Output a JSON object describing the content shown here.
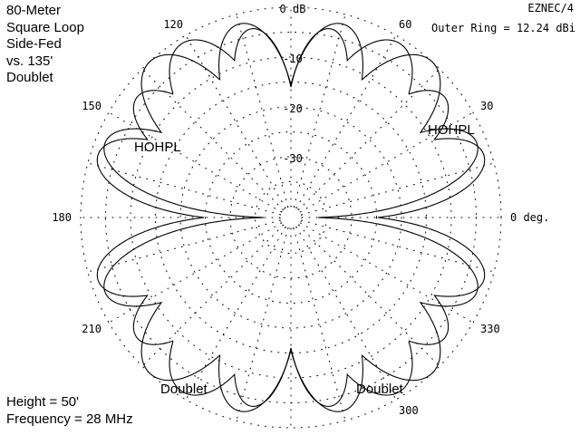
{
  "title_lines": [
    "80-Meter",
    "Square Loop",
    "Side-Fed",
    "vs. 135'",
    "Doublet"
  ],
  "program_label": "EZNEC/4",
  "outer_ring_label": "Outer Ring = 12.24 dBi",
  "bottom_lines": [
    "Height = 50'",
    "Frequency = 28 MHz"
  ],
  "colors": {
    "background": "#ffffff",
    "trace": "#000000",
    "grid": "#000000"
  },
  "chart_data": {
    "type": "polar",
    "title": "80-Meter Square Loop Side-Fed vs. 135' Doublet",
    "outer_ring_dbi": 12.24,
    "angle_unit": "deg",
    "angle_direction": "counterclockwise from right",
    "angle_labels": [
      {
        "angle": 0,
        "text": "0 deg."
      },
      {
        "angle": 30,
        "text": "30"
      },
      {
        "angle": 60,
        "text": "60"
      },
      {
        "angle": 120,
        "text": "120"
      },
      {
        "angle": 150,
        "text": "150"
      },
      {
        "angle": 180,
        "text": "180"
      },
      {
        "angle": 210,
        "text": "210"
      },
      {
        "angle": 300,
        "text": "300"
      },
      {
        "angle": 330,
        "text": "330"
      }
    ],
    "ring_labels": [
      {
        "db": 0,
        "text": "0 dB"
      },
      {
        "db": -10,
        "text": "-10"
      },
      {
        "db": -20,
        "text": "-20"
      },
      {
        "db": -30,
        "text": "-30"
      }
    ],
    "grid": true,
    "series": [
      {
        "name": "HOHPL",
        "annotations": [
          "HOHPL",
          "HOHPL"
        ],
        "lobes": [
          {
            "az": 18,
            "rel_db": -1.5,
            "width": 5.5
          },
          {
            "az": 38,
            "rel_db": -3.0,
            "width": 5.5
          },
          {
            "az": 58,
            "rel_db": -1.0,
            "width": 6.5
          },
          {
            "az": 78,
            "rel_db": -3.5,
            "width": 5.0
          },
          {
            "az": 102,
            "rel_db": -3.5,
            "width": 5.0
          },
          {
            "az": 122,
            "rel_db": -1.0,
            "width": 6.5
          },
          {
            "az": 142,
            "rel_db": -3.0,
            "width": 5.5
          },
          {
            "az": 162,
            "rel_db": -1.5,
            "width": 5.5
          },
          {
            "az": 198,
            "rel_db": -1.5,
            "width": 5.5
          },
          {
            "az": 218,
            "rel_db": -3.0,
            "width": 5.5
          },
          {
            "az": 238,
            "rel_db": -1.0,
            "width": 6.5
          },
          {
            "az": 258,
            "rel_db": -3.5,
            "width": 5.0
          },
          {
            "az": 282,
            "rel_db": -3.5,
            "width": 5.0
          },
          {
            "az": 302,
            "rel_db": -1.0,
            "width": 6.5
          },
          {
            "az": 322,
            "rel_db": -3.0,
            "width": 5.5
          },
          {
            "az": 342,
            "rel_db": -1.5,
            "width": 5.5
          }
        ]
      },
      {
        "name": "Doublet",
        "annotations": [
          "Doublet",
          "Doublet"
        ],
        "lobes": [
          {
            "az": 22,
            "rel_db": -2.0,
            "width": 5.5
          },
          {
            "az": 48,
            "rel_db": 0.0,
            "width": 6.5
          },
          {
            "az": 75,
            "rel_db": -2.0,
            "width": 6.0
          },
          {
            "az": 105,
            "rel_db": -2.0,
            "width": 6.0
          },
          {
            "az": 132,
            "rel_db": 0.0,
            "width": 6.5
          },
          {
            "az": 158,
            "rel_db": -2.0,
            "width": 5.5
          },
          {
            "az": 202,
            "rel_db": -2.0,
            "width": 5.5
          },
          {
            "az": 228,
            "rel_db": 0.0,
            "width": 6.5
          },
          {
            "az": 255,
            "rel_db": -2.0,
            "width": 6.0
          },
          {
            "az": 285,
            "rel_db": -2.0,
            "width": 6.0
          },
          {
            "az": 312,
            "rel_db": 0.0,
            "width": 6.5
          },
          {
            "az": 338,
            "rel_db": -2.0,
            "width": 5.5
          }
        ]
      }
    ]
  }
}
